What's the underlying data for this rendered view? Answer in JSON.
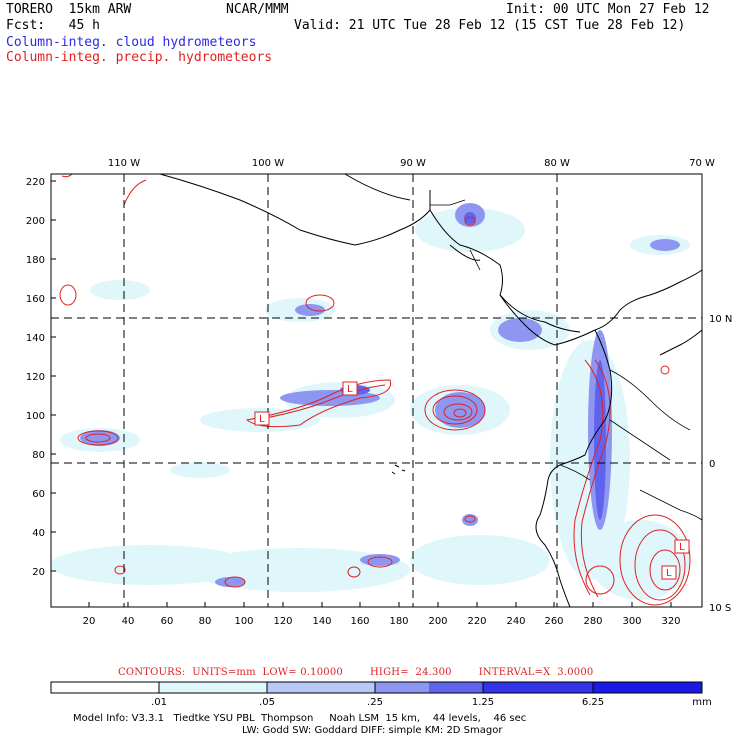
{
  "header": {
    "model": "TORERO  15km ARW",
    "center": "NCAR/MMM",
    "init": "Init: 00 UTC Mon 27 Feb 12",
    "fcst": "Fcst:   45 h",
    "valid": "Valid: 21 UTC Tue 28 Feb 12 (15 CST Tue 28 Feb 12)",
    "field1": "Column-integ. cloud hydrometeors",
    "field2": "Column-integ. precip. hydrometeors"
  },
  "map": {
    "lon_labels": [
      "110 W",
      "100 W",
      "90 W",
      "80 W",
      "70 W"
    ],
    "lat_labels": [
      "10 N",
      "0",
      "10 S"
    ],
    "y_ticks": [
      "220",
      "200",
      "180",
      "160",
      "140",
      "120",
      "100",
      "80",
      "60",
      "40",
      "20"
    ],
    "x_ticks": [
      "20",
      "40",
      "60",
      "80",
      "100",
      "120",
      "140",
      "160",
      "180",
      "200",
      "220",
      "240",
      "260",
      "280",
      "300",
      "320"
    ],
    "low_high_markers": [
      "L",
      "L",
      "L",
      "L"
    ]
  },
  "contours_line": "CONTOURS:  UNITS=mm  LOW= 0.10000        HIGH=  24.300        INTERVAL=X  3.0000",
  "legend": {
    "levels": [
      ".01",
      ".05",
      ".25",
      "1.25",
      "6.25"
    ],
    "unit": "mm",
    "colors": [
      "#ffffff",
      "#dff7fb",
      "#b9c8f7",
      "#8d97f2",
      "#5f63ee",
      "#3333ea",
      "#1a1ae6"
    ]
  },
  "model_info": {
    "line1": "Model Info: V3.3.1   Tiedtke YSU PBL  Thompson     Noah LSM  15 km,    44 levels,    46 sec",
    "line2": "LW: Godd SW: Goddard DIFF: simple KM: 2D Smagor"
  },
  "colors": {
    "cloud": "#2a2ae6",
    "precip": "#e02020"
  }
}
